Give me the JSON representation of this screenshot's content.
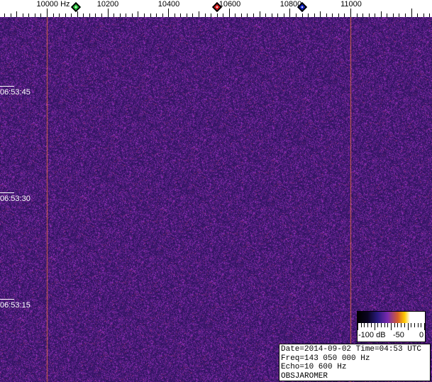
{
  "frequency_axis": {
    "labels": [
      "10000 Hz",
      "10200",
      "10400",
      "10600",
      "10800",
      "11000"
    ],
    "values_hz": [
      10000,
      10200,
      10400,
      10600,
      10800,
      11000
    ]
  },
  "markers": [
    {
      "name": "green",
      "color": "#2ecc40",
      "freq_hz": 10100
    },
    {
      "name": "red",
      "color": "#e02020",
      "freq_hz": 10560
    },
    {
      "name": "blue",
      "color": "#1020c0",
      "freq_hz": 10840
    }
  ],
  "time_labels": [
    "06:53:45",
    "06:53:30",
    "06:53:15"
  ],
  "colorbar": {
    "labels": [
      "-100 dB",
      "-50",
      "0"
    ]
  },
  "info": {
    "line1": "Date=2014-09-02 Time=04:53 UTC",
    "line2": "Freq=143 050 000 Hz",
    "line3": "Echo=10 600 Hz",
    "line4": "OBSJAROMER"
  },
  "carrier_lines_hz": [
    10000,
    11000
  ]
}
